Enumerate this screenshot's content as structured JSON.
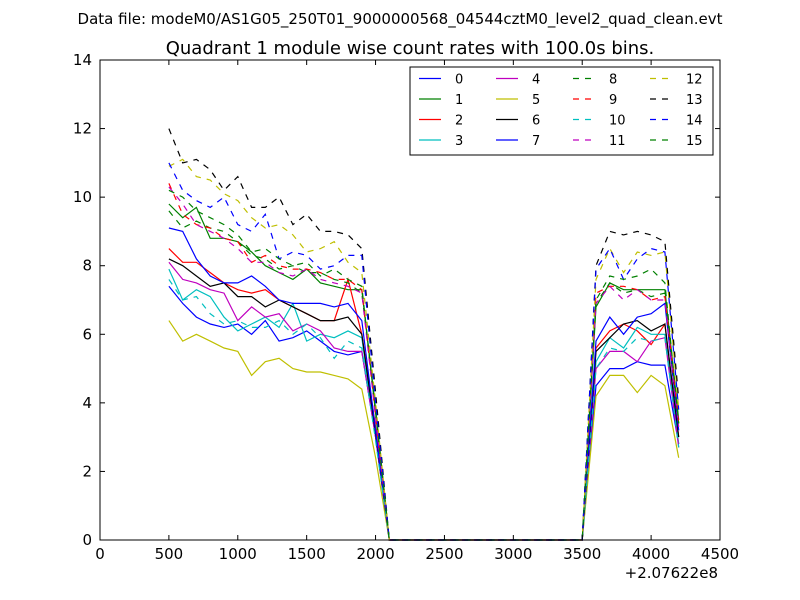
{
  "page": {
    "file_title": "Data file: modeM0/AS1G05_250T01_9000000568_04544cztM0_level2_quad_clean.evt"
  },
  "chart_data": {
    "type": "line",
    "title": "Quadrant 1 module wise count rates with 100.0s bins.",
    "xlabel": "",
    "ylabel": "",
    "xlim": [
      0,
      4500
    ],
    "ylim": [
      0,
      14
    ],
    "x_offset_label": "+2.07622e8",
    "xticks": [
      0,
      500,
      1000,
      1500,
      2000,
      2500,
      3000,
      3500,
      4000,
      4500
    ],
    "yticks": [
      0,
      2,
      4,
      6,
      8,
      10,
      12,
      14
    ],
    "legend_position": "top-right",
    "legend_columns": 4,
    "x": [
      500,
      600,
      700,
      800,
      900,
      1000,
      1100,
      1200,
      1300,
      1400,
      1500,
      1600,
      1700,
      1800,
      1900,
      2000,
      2100,
      3500,
      3600,
      3700,
      3800,
      3900,
      4000,
      4100,
      4200
    ],
    "series": [
      {
        "name": "0",
        "color": "#0000ff",
        "dash": "solid",
        "values": [
          7.4,
          6.9,
          6.5,
          6.3,
          6.2,
          6.3,
          6.0,
          6.4,
          5.8,
          5.9,
          6.1,
          5.8,
          5.5,
          5.4,
          5.5,
          3.0,
          0,
          0,
          4.5,
          5.0,
          5.0,
          5.2,
          5.1,
          5.1,
          2.8
        ]
      },
      {
        "name": "1",
        "color": "#008000",
        "dash": "solid",
        "values": [
          9.8,
          9.4,
          9.7,
          8.8,
          8.8,
          8.7,
          8.4,
          8.0,
          7.8,
          7.6,
          7.9,
          7.5,
          7.4,
          7.3,
          7.3,
          3.8,
          0,
          0,
          6.8,
          7.5,
          7.3,
          7.3,
          7.3,
          7.3,
          3.5
        ]
      },
      {
        "name": "2",
        "color": "#ff0000",
        "dash": "solid",
        "values": [
          8.5,
          8.1,
          8.1,
          7.8,
          7.5,
          7.3,
          7.2,
          7.3,
          7.0,
          6.8,
          6.6,
          6.4,
          6.4,
          7.6,
          6.0,
          3.3,
          0,
          0,
          5.6,
          6.1,
          6.3,
          6.1,
          5.7,
          6.3,
          3.0
        ]
      },
      {
        "name": "3",
        "color": "#00bfbf",
        "dash": "solid",
        "values": [
          7.9,
          7.0,
          7.3,
          7.1,
          6.5,
          6.1,
          6.3,
          6.5,
          6.2,
          6.9,
          5.8,
          6.0,
          5.9,
          6.1,
          5.9,
          3.0,
          0,
          0,
          5.2,
          5.9,
          5.6,
          6.2,
          6.0,
          6.0,
          2.8
        ]
      },
      {
        "name": "4",
        "color": "#bf00bf",
        "dash": "solid",
        "values": [
          8.1,
          7.6,
          7.5,
          7.3,
          7.2,
          6.4,
          6.8,
          6.5,
          6.6,
          6.1,
          6.3,
          6.1,
          5.6,
          5.5,
          5.5,
          3.0,
          0,
          0,
          5.0,
          5.5,
          5.5,
          5.2,
          5.8,
          5.9,
          2.7
        ]
      },
      {
        "name": "5",
        "color": "#bfbf00",
        "dash": "solid",
        "values": [
          6.4,
          5.8,
          6.0,
          5.8,
          5.6,
          5.5,
          4.8,
          5.2,
          5.3,
          5.0,
          4.9,
          4.9,
          4.8,
          4.7,
          4.4,
          2.4,
          0,
          0,
          4.2,
          4.8,
          4.8,
          4.3,
          4.8,
          4.5,
          2.4
        ]
      },
      {
        "name": "6",
        "color": "#000000",
        "dash": "solid",
        "values": [
          8.2,
          8.0,
          7.7,
          7.4,
          7.5,
          7.1,
          7.1,
          6.8,
          7.0,
          6.8,
          6.6,
          6.4,
          6.4,
          6.5,
          6.0,
          3.1,
          0,
          0,
          5.5,
          5.9,
          6.3,
          6.4,
          6.1,
          6.3,
          3.0
        ]
      },
      {
        "name": "7",
        "color": "#0000ff",
        "dash": "solid",
        "values": [
          9.1,
          9.0,
          8.2,
          7.7,
          7.5,
          7.5,
          7.7,
          7.4,
          7.0,
          6.9,
          6.9,
          6.9,
          6.8,
          6.9,
          6.4,
          3.2,
          0,
          0,
          5.8,
          6.5,
          6.0,
          6.5,
          6.6,
          6.9,
          3.2
        ]
      },
      {
        "name": "8",
        "color": "#008000",
        "dash": "dashed",
        "values": [
          9.6,
          9.1,
          9.3,
          9.1,
          9.0,
          8.7,
          8.3,
          8.2,
          7.9,
          8.0,
          7.8,
          7.8,
          7.6,
          7.5,
          7.2,
          3.8,
          0,
          0,
          6.9,
          7.5,
          7.2,
          7.3,
          7.1,
          7.2,
          3.4
        ]
      },
      {
        "name": "9",
        "color": "#ff0000",
        "dash": "dashed",
        "values": [
          10.4,
          9.5,
          9.2,
          9.1,
          8.8,
          8.7,
          8.1,
          8.3,
          8.0,
          7.9,
          7.9,
          7.8,
          7.6,
          7.6,
          7.3,
          3.6,
          0,
          0,
          7.2,
          7.4,
          7.4,
          7.3,
          7.0,
          7.1,
          3.4
        ]
      },
      {
        "name": "10",
        "color": "#00bfbf",
        "dash": "dashed",
        "values": [
          7.6,
          7.0,
          7.1,
          6.6,
          6.3,
          6.4,
          6.2,
          6.2,
          6.4,
          6.0,
          6.3,
          5.9,
          5.3,
          5.8,
          5.6,
          2.9,
          0,
          0,
          5.0,
          5.6,
          5.5,
          5.9,
          5.8,
          5.9,
          2.7
        ]
      },
      {
        "name": "11",
        "color": "#bf00bf",
        "dash": "dashed",
        "values": [
          10.3,
          9.8,
          9.2,
          9.0,
          8.8,
          8.5,
          8.1,
          8.1,
          7.8,
          7.7,
          7.9,
          7.6,
          7.5,
          7.4,
          7.2,
          3.6,
          0,
          0,
          6.9,
          7.4,
          7.0,
          7.3,
          7.0,
          7.0,
          3.3
        ]
      },
      {
        "name": "12",
        "color": "#bfbf00",
        "dash": "dashed",
        "values": [
          10.9,
          11.1,
          10.6,
          10.5,
          10.1,
          9.9,
          9.4,
          9.1,
          9.2,
          8.9,
          8.4,
          8.5,
          8.7,
          8.1,
          7.8,
          4.0,
          0,
          0,
          7.6,
          8.5,
          7.8,
          8.4,
          8.3,
          8.4,
          3.8
        ]
      },
      {
        "name": "13",
        "color": "#000000",
        "dash": "dashed",
        "values": [
          12.0,
          11.0,
          11.1,
          10.8,
          10.2,
          10.6,
          9.7,
          9.7,
          10.0,
          9.2,
          9.5,
          9.0,
          9.0,
          8.9,
          8.5,
          4.3,
          0,
          0,
          8.0,
          9.0,
          8.9,
          9.0,
          8.9,
          8.7,
          4.1
        ]
      },
      {
        "name": "14",
        "color": "#0000ff",
        "dash": "dashed",
        "values": [
          11.0,
          10.2,
          9.9,
          9.7,
          10.0,
          9.2,
          9.0,
          9.5,
          8.2,
          8.4,
          8.3,
          7.9,
          8.0,
          8.3,
          8.3,
          4.0,
          0,
          0,
          7.9,
          8.5,
          7.6,
          8.2,
          8.5,
          8.4,
          3.8
        ]
      },
      {
        "name": "15",
        "color": "#008000",
        "dash": "dashed",
        "values": [
          10.2,
          10.0,
          9.6,
          9.4,
          9.2,
          8.9,
          8.4,
          8.5,
          8.2,
          8.0,
          8.1,
          7.7,
          7.9,
          7.6,
          7.4,
          3.7,
          0,
          0,
          7.0,
          7.7,
          7.6,
          7.7,
          7.9,
          7.5,
          3.4
        ]
      }
    ]
  }
}
